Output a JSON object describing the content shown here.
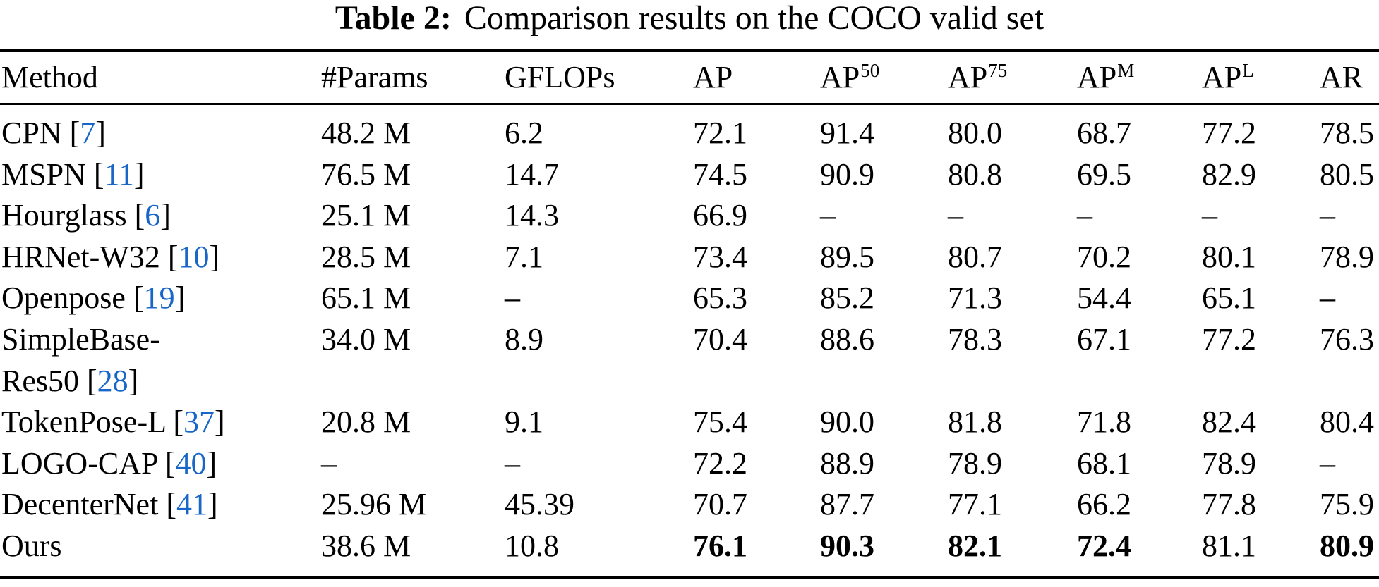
{
  "title": {
    "label": "Table 2:",
    "text": "Comparison results on the COCO valid set"
  },
  "colors": {
    "citation_link": "#1766C8",
    "text": "#000000",
    "rule": "#000000"
  },
  "table": {
    "columns": [
      {
        "key": "method",
        "label": "Method",
        "sup": ""
      },
      {
        "key": "params",
        "label": "#Params",
        "sup": ""
      },
      {
        "key": "gflops",
        "label": "GFLOPs",
        "sup": ""
      },
      {
        "key": "ap",
        "label": "AP",
        "sup": ""
      },
      {
        "key": "ap50",
        "label": "AP",
        "sup": "50"
      },
      {
        "key": "ap75",
        "label": "AP",
        "sup": "75"
      },
      {
        "key": "apm",
        "label": "AP",
        "sup": "M"
      },
      {
        "key": "apl",
        "label": "AP",
        "sup": "L"
      },
      {
        "key": "ar",
        "label": "AR",
        "sup": ""
      }
    ],
    "rows": [
      {
        "method_lines": [
          "CPN"
        ],
        "ref": "7",
        "values": [
          "48.2 M",
          "6.2",
          "72.1",
          "91.4",
          "80.0",
          "68.7",
          "77.2",
          "78.5"
        ],
        "bold": []
      },
      {
        "method_lines": [
          "MSPN"
        ],
        "ref": "11",
        "values": [
          "76.5 M",
          "14.7",
          "74.5",
          "90.9",
          "80.8",
          "69.5",
          "82.9",
          "80.5"
        ],
        "bold": []
      },
      {
        "method_lines": [
          "Hourglass"
        ],
        "ref": "6",
        "values": [
          "25.1 M",
          "14.3",
          "66.9",
          "–",
          "–",
          "–",
          "–",
          "–"
        ],
        "bold": []
      },
      {
        "method_lines": [
          "HRNet-W32"
        ],
        "ref": "10",
        "values": [
          "28.5 M",
          "7.1",
          "73.4",
          "89.5",
          "80.7",
          "70.2",
          "80.1",
          "78.9"
        ],
        "bold": []
      },
      {
        "method_lines": [
          "Openpose"
        ],
        "ref": "19",
        "values": [
          "65.1 M",
          "–",
          "65.3",
          "85.2",
          "71.3",
          "54.4",
          "65.1",
          "–"
        ],
        "bold": []
      },
      {
        "method_lines": [
          "SimpleBase-",
          "Res50"
        ],
        "ref": "28",
        "values": [
          "34.0 M",
          "8.9",
          "70.4",
          "88.6",
          "78.3",
          "67.1",
          "77.2",
          "76.3"
        ],
        "bold": []
      },
      {
        "method_lines": [
          "TokenPose-L"
        ],
        "ref": "37",
        "values": [
          "20.8 M",
          "9.1",
          "75.4",
          "90.0",
          "81.8",
          "71.8",
          "82.4",
          "80.4"
        ],
        "bold": []
      },
      {
        "method_lines": [
          "LOGO-CAP"
        ],
        "ref": "40",
        "values": [
          "–",
          "–",
          "72.2",
          "88.9",
          "78.9",
          "68.1",
          "78.9",
          "–"
        ],
        "bold": []
      },
      {
        "method_lines": [
          "DecenterNet"
        ],
        "ref": "41",
        "values": [
          "25.96 M",
          "45.39",
          "70.7",
          "87.7",
          "77.1",
          "66.2",
          "77.8",
          "75.9"
        ],
        "bold": []
      },
      {
        "method_lines": [
          "Ours"
        ],
        "ref": null,
        "values": [
          "38.6 M",
          "10.8",
          "76.1",
          "90.3",
          "82.1",
          "72.4",
          "81.1",
          "80.9"
        ],
        "bold": [
          2,
          3,
          4,
          5,
          7
        ]
      }
    ]
  }
}
